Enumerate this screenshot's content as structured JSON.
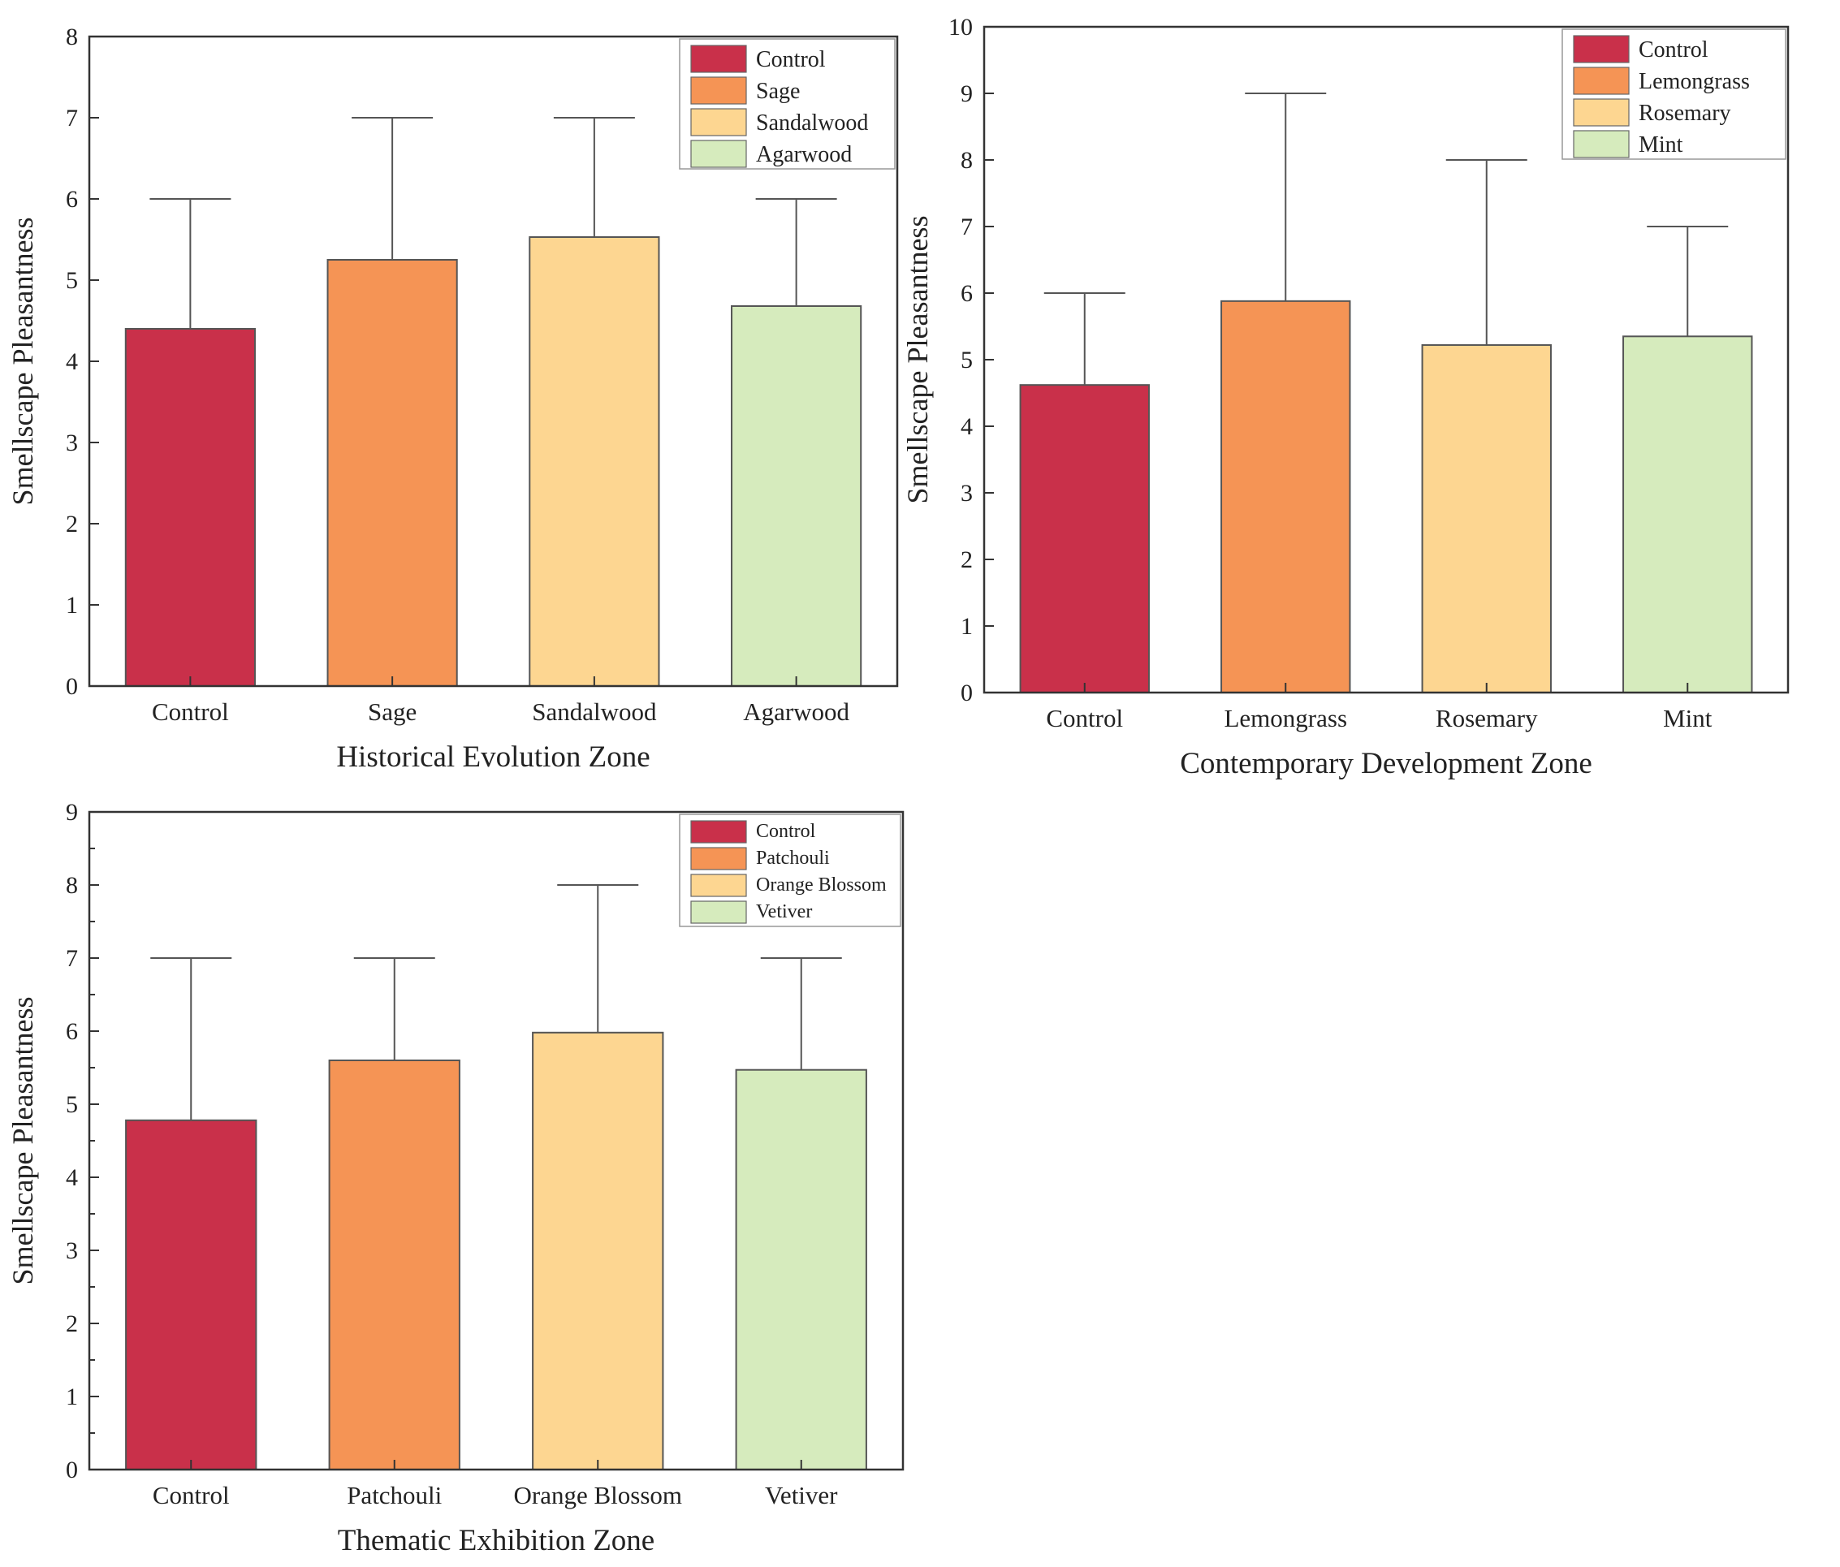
{
  "chart_data": [
    {
      "type": "bar",
      "title": "",
      "xlabel": "Historical Evolution Zone",
      "ylabel": "Smellscape Pleasantness",
      "ylim": [
        0,
        8
      ],
      "yticks": [
        0,
        1,
        2,
        3,
        4,
        5,
        6,
        7,
        8
      ],
      "categories": [
        "Control",
        "Sage",
        "Sandalwood",
        "Agarwood"
      ],
      "values": [
        4.4,
        5.25,
        5.53,
        4.68
      ],
      "error_upper": [
        6,
        7,
        7,
        6
      ],
      "colors": [
        "#c9304a",
        "#f59455",
        "#fdd691",
        "#d6ebbd"
      ],
      "legend": [
        "Control",
        "Sage",
        "Sandalwood",
        "Agarwood"
      ],
      "legend_position": "top-right"
    },
    {
      "type": "bar",
      "title": "",
      "xlabel": "Contemporary Development Zone",
      "ylabel": "Smellscape Pleasantness",
      "ylim": [
        0,
        10
      ],
      "yticks": [
        0,
        1,
        2,
        3,
        4,
        5,
        6,
        7,
        8,
        9,
        10
      ],
      "categories": [
        "Control",
        "Lemongrass",
        "Rosemary",
        "Mint"
      ],
      "values": [
        4.62,
        5.88,
        5.22,
        5.35
      ],
      "error_upper": [
        6,
        9,
        8,
        7
      ],
      "colors": [
        "#c9304a",
        "#f59455",
        "#fdd691",
        "#d6ebbd"
      ],
      "legend": [
        "Control",
        "Lemongrass",
        "Rosemary",
        "Mint"
      ],
      "legend_position": "top-right"
    },
    {
      "type": "bar",
      "title": "",
      "xlabel": "Thematic Exhibition Zone",
      "ylabel": "Smellscape Pleasantness",
      "ylim": [
        0,
        9
      ],
      "yticks": [
        0,
        1,
        2,
        3,
        4,
        5,
        6,
        7,
        8,
        9
      ],
      "categories": [
        "Control",
        "Patchouli",
        "Orange Blossom",
        "Vetiver"
      ],
      "values": [
        4.78,
        5.6,
        5.98,
        5.47
      ],
      "error_upper": [
        7,
        7,
        8,
        7
      ],
      "colors": [
        "#c9304a",
        "#f59455",
        "#fdd691",
        "#d6ebbd"
      ],
      "legend": [
        "Control",
        "Patchouli",
        "Orange Blossom",
        "Vetiver"
      ],
      "legend_position": "top-right"
    }
  ]
}
